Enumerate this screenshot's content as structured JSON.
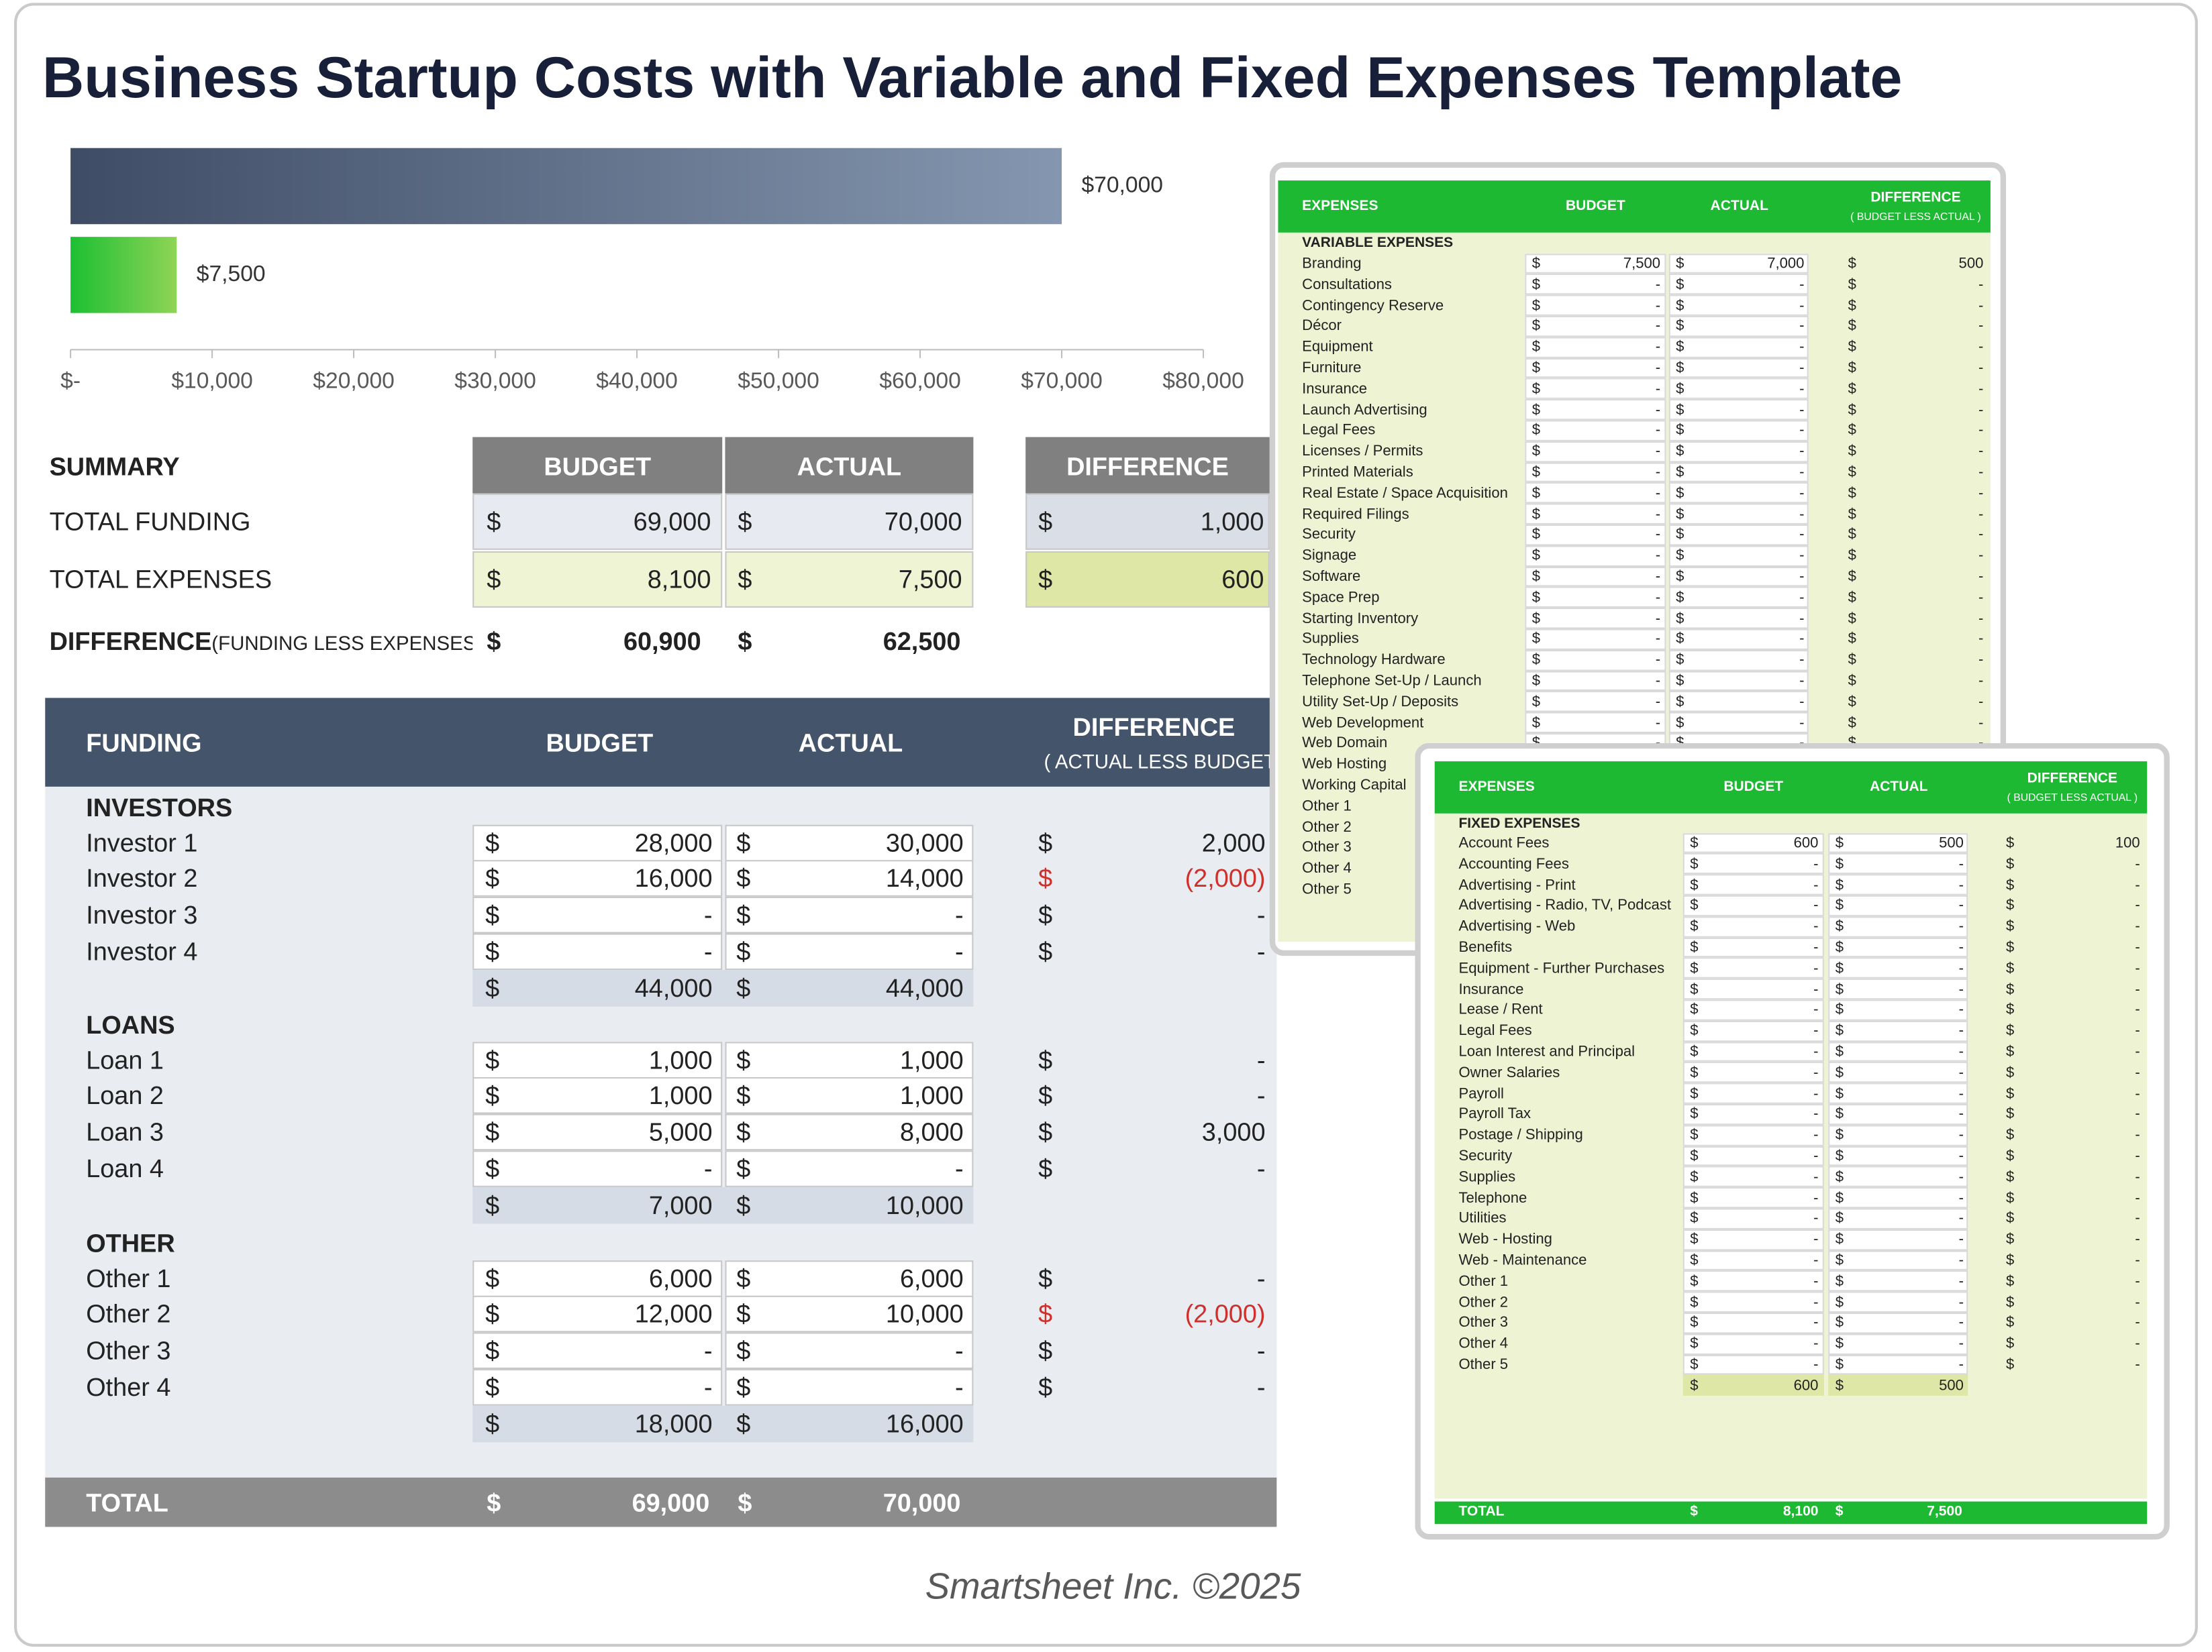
{
  "title": "Business Startup Costs with Variable and Fixed Expenses Template",
  "currency": "$",
  "chart_data": {
    "type": "bar",
    "orientation": "horizontal",
    "categories": [
      null,
      null
    ],
    "values": [
      70000,
      7500
    ],
    "value_labels": [
      "$70,000",
      "$7,500"
    ],
    "colors": [
      [
        "#3f4c65",
        "#8597b0"
      ],
      [
        "#1cbf33",
        "#8fd456"
      ]
    ],
    "xlim": [
      0,
      80000
    ],
    "xticks": [
      {
        "value": 0,
        "label": "$-"
      },
      {
        "value": 10000,
        "label": "$10,000"
      },
      {
        "value": 20000,
        "label": "$20,000"
      },
      {
        "value": 30000,
        "label": "$30,000"
      },
      {
        "value": 40000,
        "label": "$40,000"
      },
      {
        "value": 50000,
        "label": "$50,000"
      },
      {
        "value": 60000,
        "label": "$60,000"
      },
      {
        "value": 70000,
        "label": "$70,000"
      },
      {
        "value": 80000,
        "label": "$80,000"
      }
    ]
  },
  "summary": {
    "title": "SUMMARY",
    "headers": [
      "BUDGET",
      "ACTUAL",
      "DIFFERENCE"
    ],
    "rows": [
      [
        "TOTAL FUNDING",
        "69,000",
        "70,000",
        "1,000"
      ],
      [
        "TOTAL EXPENSES",
        "8,100",
        "7,500",
        "600"
      ]
    ],
    "difference": {
      "label": "DIFFERENCE",
      "note": "(FUNDING LESS EXPENSES)",
      "budget": "60,900",
      "actual": "62,500"
    }
  },
  "funding": {
    "header": {
      "label": "FUNDING",
      "budget": "BUDGET",
      "actual": "ACTUAL",
      "difference": "DIFFERENCE",
      "note": "( ACTUAL LESS BUDGET )"
    },
    "groups": [
      {
        "title": "INVESTORS",
        "rows": [
          [
            "Investor 1",
            "28,000",
            "30,000",
            "2,000"
          ],
          [
            "Investor 2",
            "16,000",
            "14,000",
            "(2,000)"
          ],
          [
            "Investor 3",
            "-",
            "-",
            "-"
          ],
          [
            "Investor 4",
            "-",
            "-",
            "-"
          ]
        ],
        "subtotal": [
          "44,000",
          "44,000"
        ]
      },
      {
        "title": "LOANS",
        "rows": [
          [
            "Loan 1",
            "1,000",
            "1,000",
            "-"
          ],
          [
            "Loan 2",
            "1,000",
            "1,000",
            "-"
          ],
          [
            "Loan 3",
            "5,000",
            "8,000",
            "3,000"
          ],
          [
            "Loan 4",
            "-",
            "-",
            "-"
          ]
        ],
        "subtotal": [
          "7,000",
          "10,000"
        ]
      },
      {
        "title": "OTHER",
        "rows": [
          [
            "Other 1",
            "6,000",
            "6,000",
            "-"
          ],
          [
            "Other 2",
            "12,000",
            "10,000",
            "(2,000)"
          ],
          [
            "Other 3",
            "-",
            "-",
            "-"
          ],
          [
            "Other 4",
            "-",
            "-",
            "-"
          ]
        ],
        "subtotal": [
          "18,000",
          "16,000"
        ]
      }
    ],
    "total": {
      "label": "TOTAL",
      "budget": "69,000",
      "actual": "70,000"
    }
  },
  "variable_expenses": {
    "headers": [
      "EXPENSES",
      "BUDGET",
      "ACTUAL",
      "DIFFERENCE"
    ],
    "note": "( BUDGET LESS ACTUAL )",
    "section": "VARIABLE EXPENSES",
    "rows": [
      [
        "Branding",
        "7,500",
        "7,000",
        "500"
      ],
      [
        "Consultations",
        "-",
        "-",
        "-"
      ],
      [
        "Contingency Reserve",
        "-",
        "-",
        "-"
      ],
      [
        "Décor",
        "-",
        "-",
        "-"
      ],
      [
        "Equipment",
        "-",
        "-",
        "-"
      ],
      [
        "Furniture",
        "-",
        "-",
        "-"
      ],
      [
        "Insurance",
        "-",
        "-",
        "-"
      ],
      [
        "Launch Advertising",
        "-",
        "-",
        "-"
      ],
      [
        "Legal Fees",
        "-",
        "-",
        "-"
      ],
      [
        "Licenses / Permits",
        "-",
        "-",
        "-"
      ],
      [
        "Printed Materials",
        "-",
        "-",
        "-"
      ],
      [
        "Real Estate / Space Acquisition",
        "-",
        "-",
        "-"
      ],
      [
        "Required Filings",
        "-",
        "-",
        "-"
      ],
      [
        "Security",
        "-",
        "-",
        "-"
      ],
      [
        "Signage",
        "-",
        "-",
        "-"
      ],
      [
        "Software",
        "-",
        "-",
        "-"
      ],
      [
        "Space Prep",
        "-",
        "-",
        "-"
      ],
      [
        "Starting Inventory",
        "-",
        "-",
        "-"
      ],
      [
        "Supplies",
        "-",
        "-",
        "-"
      ],
      [
        "Technology Hardware",
        "-",
        "-",
        "-"
      ],
      [
        "Telephone Set-Up / Launch",
        "-",
        "-",
        "-"
      ],
      [
        "Utility Set-Up / Deposits",
        "-",
        "-",
        "-"
      ],
      [
        "Web Development",
        "-",
        "-",
        "-"
      ],
      [
        "Web Domain",
        "-",
        "-",
        "-"
      ],
      [
        "Web Hosting",
        "-",
        "-",
        "-"
      ],
      [
        "Working Capital",
        "-",
        "-",
        "-"
      ],
      [
        "Other 1",
        "-",
        "-",
        "-"
      ],
      [
        "Other 2",
        "-",
        "-",
        "-"
      ],
      [
        "Other 3",
        "-",
        "-",
        "-"
      ],
      [
        "Other 4",
        "-",
        "-",
        "-"
      ],
      [
        "Other 5",
        "-",
        "-",
        "-"
      ]
    ]
  },
  "fixed_expenses": {
    "headers": [
      "EXPENSES",
      "BUDGET",
      "ACTUAL",
      "DIFFERENCE"
    ],
    "note": "( BUDGET LESS ACTUAL )",
    "section": "FIXED EXPENSES",
    "rows": [
      [
        "Account Fees",
        "600",
        "500",
        "100"
      ],
      [
        "Accounting Fees",
        "-",
        "-",
        "-"
      ],
      [
        "Advertising - Print",
        "-",
        "-",
        "-"
      ],
      [
        "Advertising - Radio, TV, Podcast",
        "-",
        "-",
        "-"
      ],
      [
        "Advertising - Web",
        "-",
        "-",
        "-"
      ],
      [
        "Benefits",
        "-",
        "-",
        "-"
      ],
      [
        "Equipment - Further Purchases",
        "-",
        "-",
        "-"
      ],
      [
        "Insurance",
        "-",
        "-",
        "-"
      ],
      [
        "Lease / Rent",
        "-",
        "-",
        "-"
      ],
      [
        "Legal Fees",
        "-",
        "-",
        "-"
      ],
      [
        "Loan Interest and Principal",
        "-",
        "-",
        "-"
      ],
      [
        "Owner Salaries",
        "-",
        "-",
        "-"
      ],
      [
        "Payroll",
        "-",
        "-",
        "-"
      ],
      [
        "Payroll Tax",
        "-",
        "-",
        "-"
      ],
      [
        "Postage / Shipping",
        "-",
        "-",
        "-"
      ],
      [
        "Security",
        "-",
        "-",
        "-"
      ],
      [
        "Supplies",
        "-",
        "-",
        "-"
      ],
      [
        "Telephone",
        "-",
        "-",
        "-"
      ],
      [
        "Utilities",
        "-",
        "-",
        "-"
      ],
      [
        "Web - Hosting",
        "-",
        "-",
        "-"
      ],
      [
        "Web - Maintenance",
        "-",
        "-",
        "-"
      ],
      [
        "Other 1",
        "-",
        "-",
        "-"
      ],
      [
        "Other 2",
        "-",
        "-",
        "-"
      ],
      [
        "Other 3",
        "-",
        "-",
        "-"
      ],
      [
        "Other 4",
        "-",
        "-",
        "-"
      ],
      [
        "Other 5",
        "-",
        "-",
        "-"
      ]
    ],
    "subtotal": [
      "600",
      "500"
    ],
    "total": {
      "label": "TOTAL",
      "budget": "8,100",
      "actual": "7,500"
    }
  },
  "footer": "Smartsheet Inc. ©2025"
}
